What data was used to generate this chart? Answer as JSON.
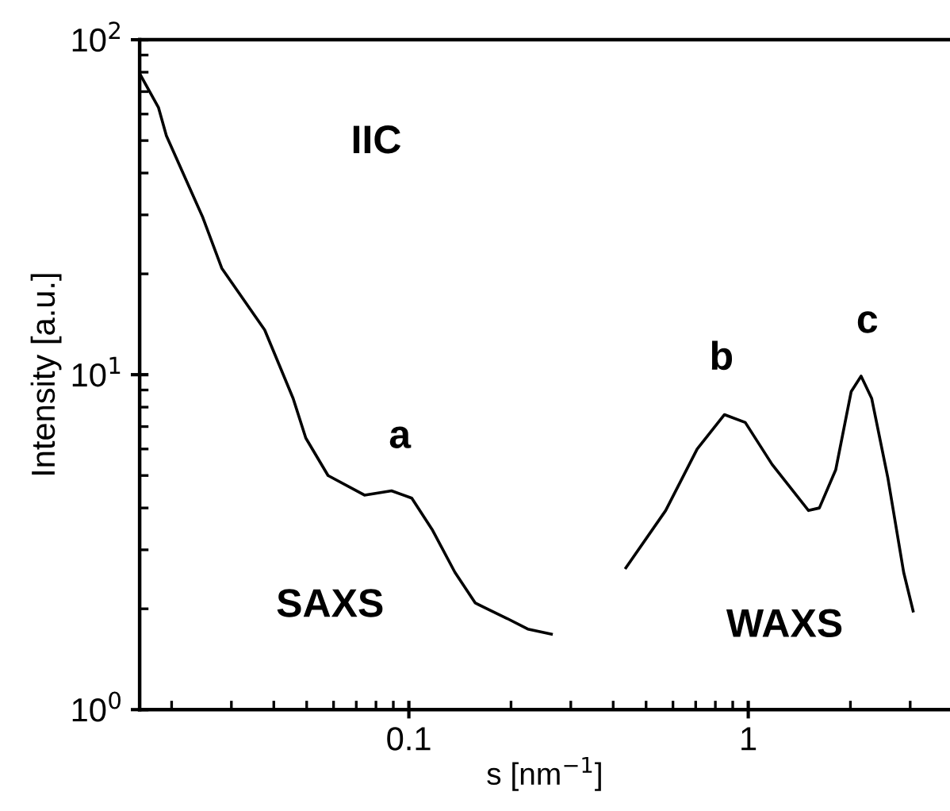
{
  "chart_data": {
    "type": "line",
    "log": "xy",
    "xlabel": "s [nm$^{−1}$]",
    "ylabel": "Intensity [a.u.]",
    "xlim": [
      0.0161,
      3.93
    ],
    "ylim": [
      1,
      100
    ],
    "xticks": [
      0.1,
      1
    ],
    "yticks": [
      {
        "value": 1,
        "label": "10$^{0}$"
      },
      {
        "value": 10,
        "label": "10$^{1}$"
      },
      {
        "value": 100,
        "label": "10$^{2}$"
      }
    ],
    "grid": false,
    "legend": false,
    "marker": "none",
    "line_style": "solid",
    "series": [
      {
        "color": "#000000",
        "x": [
          0.0161,
          0.0183,
          0.0193,
          0.0247,
          0.0281,
          0.0376,
          0.0456,
          0.0497,
          0.0578,
          0.074,
          0.0889,
          0.102,
          0.1175,
          0.1367,
          0.157,
          0.195,
          0.224,
          0.263
        ],
        "values": [
          79.3,
          62.7,
          51.7,
          29.5,
          20.8,
          13.6,
          8.5,
          6.47,
          5.0,
          4.37,
          4.5,
          4.28,
          3.43,
          2.57,
          2.08,
          1.87,
          1.74,
          1.68
        ]
      },
      {
        "color": "#000000",
        "x": [
          0.436,
          0.571,
          0.707,
          0.851,
          0.98,
          1.175,
          1.505,
          1.62,
          1.81,
          2.01,
          2.15,
          2.31,
          2.58,
          2.87,
          3.06
        ],
        "values": [
          2.65,
          3.93,
          6.0,
          7.6,
          7.2,
          5.4,
          3.93,
          4.0,
          5.2,
          8.9,
          9.9,
          8.5,
          4.9,
          2.57,
          1.97
        ]
      }
    ],
    "annotations": [
      "IIC",
      "a",
      "b",
      "c",
      "SAXS",
      "WAXS"
    ]
  }
}
